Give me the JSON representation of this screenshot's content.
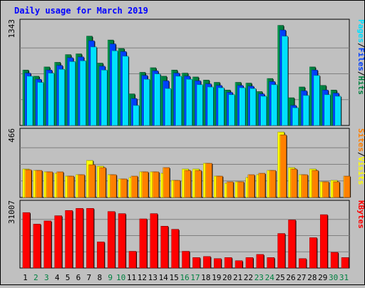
{
  "chart_data": {
    "type": "bar",
    "title": "Daily usage for March 2019",
    "categories": [
      "1",
      "2",
      "3",
      "4",
      "5",
      "6",
      "7",
      "8",
      "9",
      "10",
      "11",
      "12",
      "13",
      "14",
      "15",
      "16",
      "17",
      "18",
      "19",
      "20",
      "21",
      "22",
      "23",
      "24",
      "25",
      "26",
      "27",
      "28",
      "29",
      "30",
      "31"
    ],
    "weekend_days": [
      2,
      3,
      9,
      10,
      16,
      17,
      23,
      24,
      30,
      31
    ],
    "colors": {
      "hits": "#008040",
      "files": "#0040ff",
      "pages": "#00e0ff",
      "visits": "#ffff00",
      "sites": "#ff8000",
      "kbytes": "#ff0000",
      "title": "#0000ff",
      "weekday_label": "#000000",
      "weekend_label": "#008040"
    },
    "panels": [
      {
        "name": "hits-files-pages",
        "max_label": "1343",
        "ymax": 1343,
        "axis_labels": [
          {
            "text": "Hits",
            "color": "#008040"
          },
          {
            "text": "/",
            "color": "#000000"
          },
          {
            "text": "Files",
            "color": "#0040ff"
          },
          {
            "text": "/",
            "color": "#000000"
          },
          {
            "text": "Pages",
            "color": "#00e0ff"
          }
        ],
        "series": [
          {
            "name": "Hits",
            "color": "#008040",
            "values": [
              720,
              640,
              760,
              820,
              920,
              930,
              1160,
              810,
              1110,
              1000,
              410,
              690,
              750,
              640,
              720,
              680,
              630,
              590,
              560,
              460,
              560,
              550,
              440,
              610,
              1300,
              360,
              500,
              760,
              520,
              460,
              0
            ]
          },
          {
            "name": "Files",
            "color": "#0040ff",
            "values": [
              680,
              600,
              720,
              780,
              880,
              890,
              1100,
              770,
              1060,
              960,
              350,
              650,
              710,
              580,
              680,
              640,
              580,
              540,
              520,
              430,
              520,
              510,
              410,
              570,
              1240,
              260,
              450,
              720,
              460,
              420,
              0
            ]
          },
          {
            "name": "Pages",
            "color": "#00e0ff",
            "values": [
              640,
              560,
              680,
              730,
              830,
              840,
              1020,
              720,
              970,
              900,
              260,
              600,
              670,
              480,
              640,
              600,
              530,
              500,
              490,
              400,
              490,
              480,
              380,
              530,
              1160,
              230,
              390,
              650,
              400,
              380,
              0
            ]
          }
        ]
      },
      {
        "name": "visits-sites",
        "max_label": "466",
        "ymax": 466,
        "axis_labels": [
          {
            "text": "Visits",
            "color": "#ffff00"
          },
          {
            "text": "/",
            "color": "#000000"
          },
          {
            "text": "Sites",
            "color": "#ff8000"
          }
        ],
        "series": [
          {
            "name": "Visits",
            "color": "#ffff00",
            "values": [
              200,
              190,
              180,
              170,
              150,
              160,
              260,
              220,
              160,
              130,
              140,
              180,
              180,
              170,
              120,
              200,
              200,
              240,
              150,
              100,
              110,
              140,
              160,
              190,
              460,
              210,
              160,
              200,
              110,
              120,
              0
            ]
          },
          {
            "name": "Sites",
            "color": "#ff8000",
            "values": [
              195,
              190,
              180,
              180,
              150,
              160,
              230,
              210,
              160,
              130,
              150,
              180,
              180,
              210,
              120,
              190,
              190,
              240,
              150,
              110,
              110,
              160,
              170,
              190,
              440,
              200,
              160,
              190,
              110,
              110,
              150
            ]
          }
        ]
      },
      {
        "name": "kbytes",
        "max_label": "31007",
        "ymax": 31007,
        "axis_labels": [
          {
            "text": "KBytes",
            "color": "#ff0000"
          }
        ],
        "series": [
          {
            "name": "KBytes",
            "color": "#ff0000",
            "values": [
              26500,
              21000,
              22500,
              25000,
              27500,
              28500,
              28500,
              12500,
              27000,
              26000,
              8000,
              23500,
              26000,
              20000,
              18500,
              8000,
              5000,
              5500,
              4500,
              5000,
              3500,
              5000,
              6500,
              5000,
              16500,
              23000,
              4500,
              14500,
              25500,
              7500,
              5000
            ]
          }
        ]
      }
    ]
  }
}
